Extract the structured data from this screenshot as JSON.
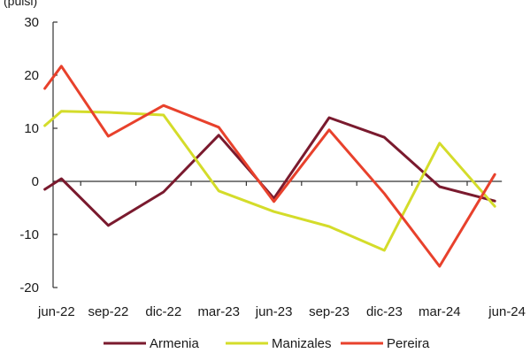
{
  "top_partial_text": "(pulsi)",
  "chart_data": {
    "type": "line",
    "categories": [
      "jun-22",
      "sep-22",
      "dic-22",
      "mar-23",
      "jun-23",
      "sep-23",
      "dic-23",
      "mar-24",
      "jun-24"
    ],
    "ylim": [
      -20,
      30
    ],
    "yticks": [
      -20,
      -10,
      0,
      10,
      20,
      30
    ],
    "ytick_labels": [
      "-20",
      "-10",
      "0",
      "10",
      "20",
      "30"
    ],
    "grid": false,
    "legend_position": "bottom",
    "series": [
      {
        "name": "Armenia",
        "color": "#7a1a2e",
        "x": [
          -0.15,
          0.15,
          1,
          2,
          3,
          4,
          5,
          6,
          7,
          8
        ],
        "values": [
          -1.5,
          0.5,
          -8.3,
          -2,
          8.7,
          -3.2,
          12,
          8.3,
          -1,
          -3.7
        ]
      },
      {
        "name": "Manizales",
        "color": "#d4dc2a",
        "x": [
          -0.15,
          0.15,
          1,
          2,
          3,
          4,
          5,
          6,
          7,
          8
        ],
        "values": [
          10.5,
          13.2,
          13,
          12.5,
          -1.8,
          -5.7,
          -8.5,
          -13,
          7.2,
          -4.7
        ]
      },
      {
        "name": "Pereira",
        "color": "#e8412c",
        "x": [
          -0.15,
          0.15,
          1,
          2,
          3,
          4,
          5,
          6,
          7,
          8
        ],
        "values": [
          17.5,
          21.7,
          8.5,
          14.3,
          10.2,
          -3.8,
          9.7,
          -2.3,
          -16,
          1.3
        ]
      }
    ]
  }
}
